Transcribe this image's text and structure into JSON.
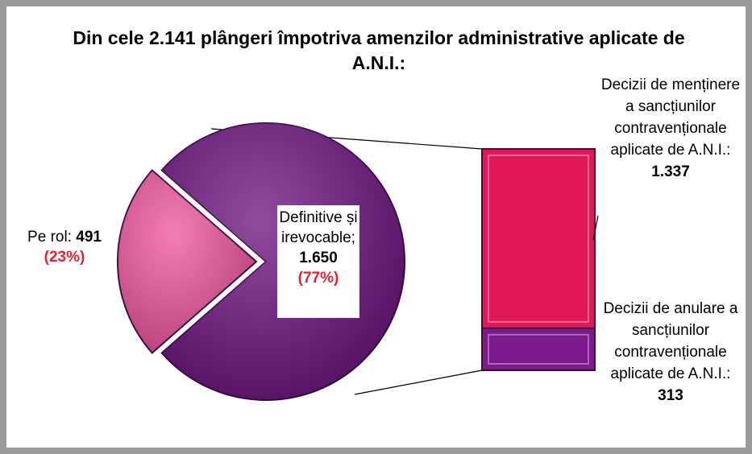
{
  "chart_data": {
    "type": "pie-of-bar",
    "title": "Din cele 2.141 plângeri împotriva amenzilor administrative aplicate de A.N.I.:",
    "categories": [
      "Pe rol:",
      "Definitive și irevocable;"
    ],
    "values": [
      491,
      1650
    ],
    "value_labels": [
      "491",
      "1.650"
    ],
    "percents": [
      23,
      77
    ],
    "percent_labels": [
      "(23%)",
      "(77%)"
    ],
    "colors": [
      "#f0529c",
      "#6b0f80"
    ],
    "breakdown": {
      "categories": [
        "Decizii de menținere a sancțiunilor contravenționale aplicate de A.N.I.:",
        "Decizii de anulare a sancțiunilor contravenționale aplicate de A.N.I.:"
      ],
      "values": [
        1337,
        313
      ],
      "value_labels": [
        "1.337",
        "313"
      ],
      "colors": [
        "#e0185a",
        "#7a1a8c"
      ]
    }
  }
}
